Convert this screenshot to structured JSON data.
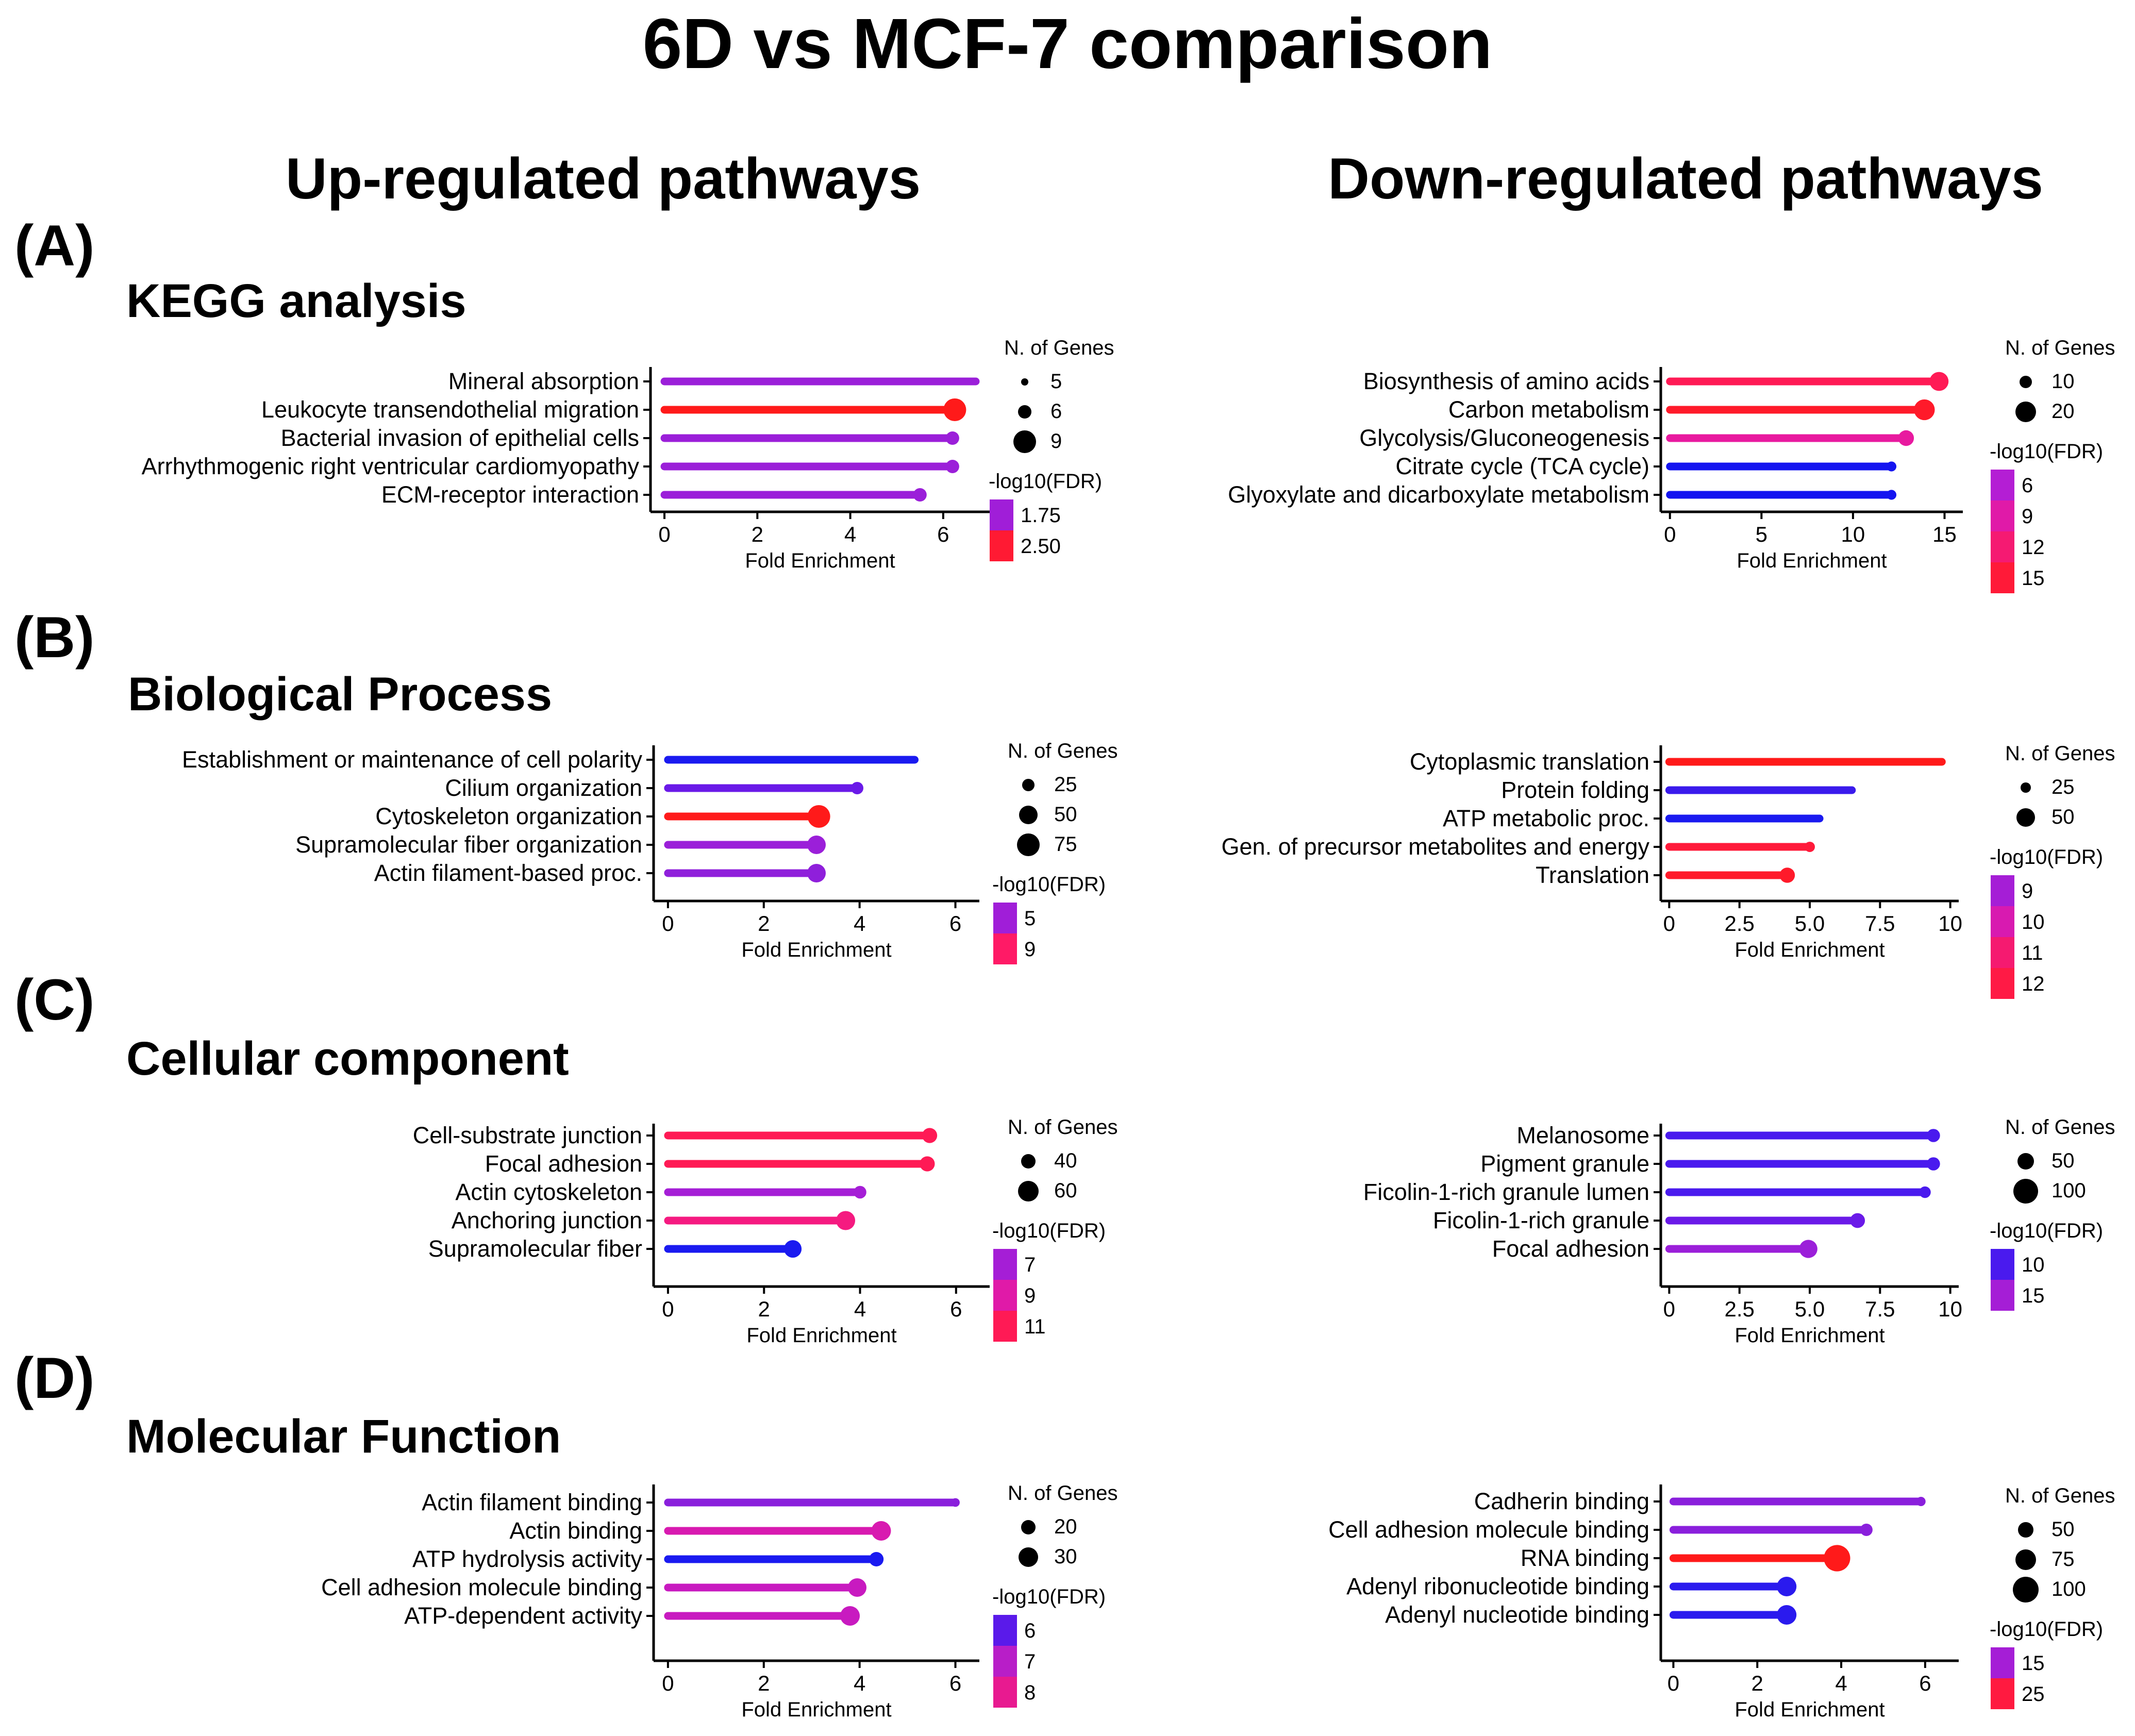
{
  "figure": {
    "title": "6D vs MCF-7 comparison",
    "column_titles": [
      "Up-regulated pathways",
      "Down-regulated pathways"
    ],
    "sections": [
      {
        "label": "(A)",
        "name": "KEGG  analysis"
      },
      {
        "label": "(B)",
        "name": "Biological Process"
      },
      {
        "label": "(C)",
        "name": "Cellular component"
      },
      {
        "label": "(D)",
        "name": "Molecular Function"
      }
    ],
    "size_legend_title": "N. of Genes",
    "color_legend_title": "-log10(FDR)",
    "xlabel": "Fold Enrichment"
  },
  "chart_data": [
    {
      "type": "lollipop",
      "panel": "A-up",
      "title": "KEGG  analysis",
      "xlabel": "Fold Enrichment",
      "xlim": [
        -0.3,
        7
      ],
      "xticks": [
        0,
        2,
        4,
        6
      ],
      "xtick_labels": [
        "0",
        "2",
        "4",
        "6"
      ],
      "categories": [
        "Mineral absorption",
        "Leukocyte transendothelial migration",
        "Bacterial invasion of epithelial cells",
        "Arrhythmogenic right ventricular cardiomyopathy",
        "ECM-receptor interaction"
      ],
      "fold_enrichment": [
        6.7,
        6.25,
        6.2,
        6.2,
        5.5
      ],
      "n_genes": [
        5,
        9,
        6,
        6,
        6
      ],
      "neg_log10_fdr": [
        1.75,
        2.5,
        1.8,
        1.75,
        1.8
      ],
      "colors": [
        "#9b1fd9",
        "#ff1a1a",
        "#9b1fd9",
        "#9b1fd9",
        "#9b1fd9"
      ],
      "size_legend": {
        "values": [
          "5",
          "6",
          "9"
        ],
        "radii": [
          7,
          13,
          22
        ]
      },
      "color_legend": {
        "labels": [
          "1.75",
          "2.50"
        ],
        "colors": [
          "#a01ed8",
          "#ff1a33"
        ]
      }
    },
    {
      "type": "lollipop",
      "panel": "A-down",
      "title": "KEGG  analysis",
      "xlabel": "Fold Enrichment",
      "xlim": [
        -0.5,
        16
      ],
      "xticks": [
        0,
        5,
        10,
        15
      ],
      "xtick_labels": [
        "0",
        "5",
        "10",
        "15"
      ],
      "categories": [
        "Biosynthesis of amino acids",
        "Carbon metabolism",
        "Glycolysis/Gluconeogenesis",
        "Citrate cycle (TCA cycle)",
        "Glyoxylate and dicarboxylate metabolism"
      ],
      "fold_enrichment": [
        14.7,
        13.9,
        12.9,
        12.1,
        12.1
      ],
      "n_genes": [
        18,
        22,
        14,
        8,
        8
      ],
      "neg_log10_fdr": [
        13,
        15,
        11,
        5,
        5
      ],
      "colors": [
        "#ff1a55",
        "#ff1a2a",
        "#e81a9f",
        "#1414f0",
        "#1414f0"
      ],
      "size_legend": {
        "values": [
          "10",
          "20"
        ],
        "radii": [
          12,
          20
        ]
      },
      "color_legend": {
        "labels": [
          "6",
          "9",
          "12",
          "15"
        ],
        "colors": [
          "#b41ed4",
          "#e01aa8",
          "#f51a72",
          "#ff1a38"
        ]
      }
    },
    {
      "type": "lollipop",
      "panel": "B-up",
      "title": "Biological Process",
      "xlabel": "Fold Enrichment",
      "xlim": [
        -0.3,
        6.5
      ],
      "xticks": [
        0,
        2,
        4,
        6
      ],
      "xtick_labels": [
        "0",
        "2",
        "4",
        "6"
      ],
      "categories": [
        "Establishment or maintenance of cell polarity",
        "Cilium organization",
        "Cytoskeleton organization",
        "Supramolecular fiber organization",
        "Actin filament-based proc."
      ],
      "fold_enrichment": [
        5.15,
        3.95,
        3.15,
        3.1,
        3.1
      ],
      "n_genes": [
        10,
        25,
        75,
        50,
        50
      ],
      "neg_log10_fdr": [
        3,
        4,
        9,
        5,
        5
      ],
      "colors": [
        "#1a1af0",
        "#6a1ae8",
        "#ff1a1a",
        "#9b1fd9",
        "#8f1fdb"
      ],
      "size_legend": {
        "values": [
          "25",
          "50",
          "75"
        ],
        "radii": [
          12,
          18,
          22
        ]
      },
      "color_legend": {
        "labels": [
          "5",
          "9"
        ],
        "colors": [
          "#a01ed8",
          "#ff1a66"
        ]
      }
    },
    {
      "type": "lollipop",
      "panel": "B-down",
      "title": "Biological Process",
      "xlabel": "Fold Enrichment",
      "xlim": [
        -0.3,
        10.3
      ],
      "xticks": [
        0,
        2.5,
        5,
        7.5,
        10
      ],
      "xtick_labels": [
        "0",
        "2.5",
        "5.0",
        "7.5",
        "10"
      ],
      "categories": [
        "Cytoplasmic translation",
        "Protein folding",
        "ATP metabolic proc.",
        "Gen. of precursor metabolites and energy",
        "Translation"
      ],
      "fold_enrichment": [
        9.7,
        6.5,
        5.35,
        5.0,
        4.2
      ],
      "n_genes": [
        15,
        18,
        18,
        25,
        40
      ],
      "neg_log10_fdr": [
        12,
        8,
        8,
        11.5,
        11.8
      ],
      "colors": [
        "#ff1a1a",
        "#3a1aec",
        "#1a1af0",
        "#ff1a3a",
        "#ff1a2a"
      ],
      "size_legend": {
        "values": [
          "25",
          "50"
        ],
        "radii": [
          10,
          18
        ]
      },
      "color_legend": {
        "labels": [
          "9",
          "10",
          "11",
          "12"
        ],
        "colors": [
          "#a51ed6",
          "#d81ab0",
          "#f51a70",
          "#ff1a45"
        ]
      }
    },
    {
      "type": "lollipop",
      "panel": "C-up",
      "title": "Cellular component",
      "xlabel": "Fold Enrichment",
      "xlim": [
        -0.3,
        6.7
      ],
      "xticks": [
        0,
        2,
        4,
        6
      ],
      "xtick_labels": [
        "0",
        "2",
        "4",
        "6"
      ],
      "categories": [
        "Cell-substrate junction",
        "Focal adhesion",
        "Actin cytoskeleton",
        "Anchoring junction",
        "Supramolecular fiber"
      ],
      "fold_enrichment": [
        5.45,
        5.4,
        4.0,
        3.7,
        2.6
      ],
      "n_genes": [
        42,
        42,
        35,
        55,
        50
      ],
      "neg_log10_fdr": [
        11,
        11,
        7,
        9.5,
        5
      ],
      "colors": [
        "#ff1a55",
        "#ff1a55",
        "#a51ed6",
        "#f51a80",
        "#1a1af0"
      ],
      "size_legend": {
        "values": [
          "40",
          "60"
        ],
        "radii": [
          14,
          20
        ]
      },
      "color_legend": {
        "labels": [
          "7",
          "9",
          "11"
        ],
        "colors": [
          "#a51ed6",
          "#e01aa8",
          "#ff1a55"
        ]
      }
    },
    {
      "type": "lollipop",
      "panel": "C-down",
      "title": "Cellular component",
      "xlabel": "Fold Enrichment",
      "xlim": [
        -0.3,
        10.3
      ],
      "xticks": [
        0,
        2.5,
        5,
        7.5,
        10
      ],
      "xtick_labels": [
        "0",
        "2.5",
        "5.0",
        "7.5",
        "10"
      ],
      "categories": [
        "Melanosome",
        "Pigment granule",
        "Ficolin-1-rich granule lumen",
        "Ficolin-1-rich granule",
        "Focal adhesion"
      ],
      "fold_enrichment": [
        9.4,
        9.4,
        9.1,
        6.7,
        4.95
      ],
      "n_genes": [
        40,
        40,
        35,
        45,
        60
      ],
      "neg_log10_fdr": [
        10,
        10,
        10,
        12,
        15
      ],
      "colors": [
        "#4a1aee",
        "#4a1aee",
        "#4a1aee",
        "#6a1ae8",
        "#9b1fd9"
      ],
      "size_legend": {
        "values": [
          "50",
          "100"
        ],
        "radii": [
          16,
          24
        ]
      },
      "color_legend": {
        "labels": [
          "10",
          "15"
        ],
        "colors": [
          "#4a1aee",
          "#a51ed6"
        ]
      }
    },
    {
      "type": "lollipop",
      "panel": "D-up",
      "title": "Molecular Function",
      "xlabel": "Fold Enrichment",
      "xlim": [
        -0.3,
        6.5
      ],
      "xticks": [
        0,
        2,
        4,
        6
      ],
      "xtick_labels": [
        "0",
        "2",
        "4",
        "6"
      ],
      "categories": [
        "Actin filament binding",
        "Actin binding",
        "ATP hydrolysis activity",
        "Cell adhesion molecule binding",
        "ATP-dependent activity"
      ],
      "fold_enrichment": [
        6.0,
        4.45,
        4.35,
        3.95,
        3.8
      ],
      "n_genes": [
        12,
        30,
        20,
        28,
        30
      ],
      "neg_log10_fdr": [
        6.5,
        7.8,
        6,
        7.6,
        7.6
      ],
      "colors": [
        "#8a1fdc",
        "#d81ab0",
        "#1a1af0",
        "#c81ac0",
        "#c81ac0"
      ],
      "size_legend": {
        "values": [
          "20",
          "30"
        ],
        "radii": [
          14,
          19
        ]
      },
      "color_legend": {
        "labels": [
          "6",
          "7",
          "8"
        ],
        "colors": [
          "#5a1aea",
          "#b81ec8",
          "#e81a90"
        ]
      }
    },
    {
      "type": "lollipop",
      "panel": "D-down",
      "title": "Molecular Function",
      "xlabel": "Fold Enrichment",
      "xlim": [
        -0.3,
        6.8
      ],
      "xticks": [
        0,
        2,
        4,
        6
      ],
      "xtick_labels": [
        "0",
        "2",
        "4",
        "6"
      ],
      "categories": [
        "Cadherin binding",
        "Cell adhesion molecule binding",
        "RNA binding",
        "Adenyl ribonucleotide binding",
        "Adenyl nucleotide binding"
      ],
      "fold_enrichment": [
        5.9,
        4.6,
        3.9,
        2.7,
        2.7
      ],
      "n_genes": [
        30,
        40,
        110,
        70,
        70
      ],
      "neg_log10_fdr": [
        15,
        15,
        25,
        8,
        8
      ],
      "colors": [
        "#8a1fdc",
        "#8a1fdc",
        "#ff1a1a",
        "#2a1aee",
        "#2a1aee"
      ],
      "size_legend": {
        "values": [
          "50",
          "75",
          "100"
        ],
        "radii": [
          15,
          20,
          25
        ]
      },
      "color_legend": {
        "labels": [
          "15",
          "25"
        ],
        "colors": [
          "#a51ed6",
          "#ff1a40"
        ]
      }
    }
  ]
}
